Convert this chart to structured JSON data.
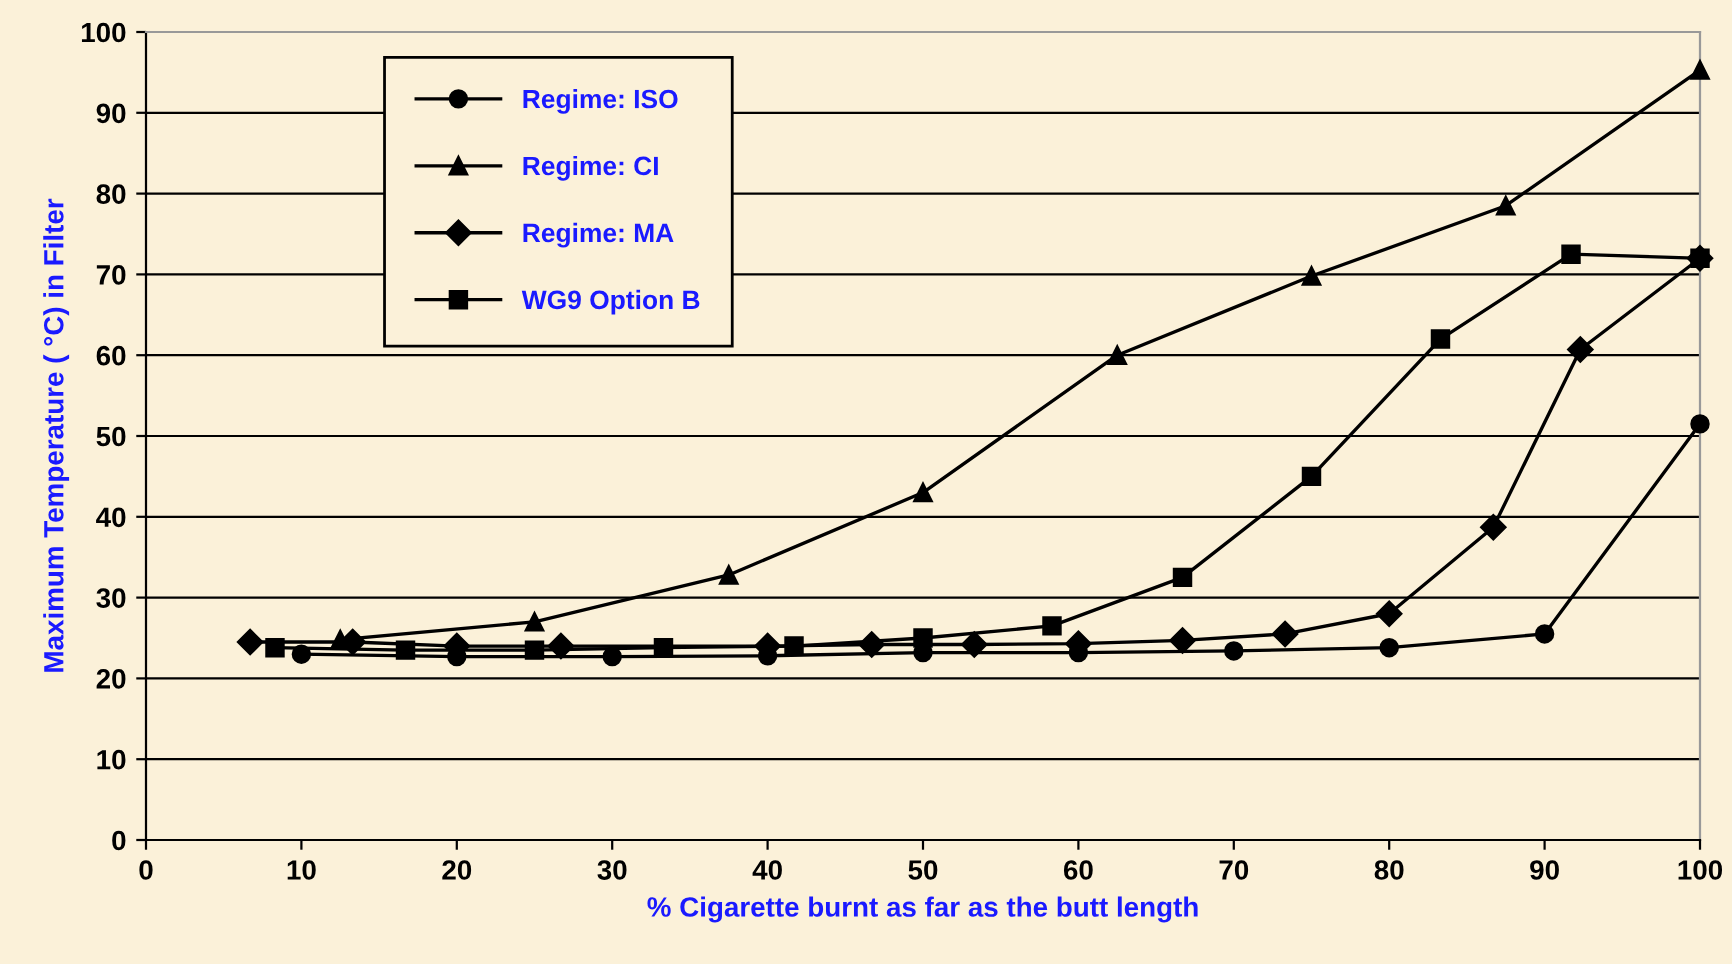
{
  "chart_data": {
    "type": "line",
    "xlabel": "% Cigarette burnt as far as the butt length",
    "ylabel": "Maximum Temperature ( °C) in Filter",
    "xlim": [
      0,
      100
    ],
    "xticks": [
      0,
      10,
      20,
      30,
      40,
      50,
      60,
      70,
      80,
      90,
      100
    ],
    "ylim": [
      0,
      100
    ],
    "yticks": [
      0,
      10,
      20,
      30,
      40,
      50,
      60,
      70,
      80,
      90,
      100
    ],
    "grid": "y",
    "legend": "top left",
    "line_style": "solid",
    "series": [
      {
        "name": "Regime: ISO",
        "color": "#000000",
        "marker": "circle",
        "x": [
          10,
          20,
          30,
          40,
          50,
          60,
          70,
          80,
          90,
          100
        ],
        "values": [
          23,
          22.7,
          22.7,
          22.8,
          23.2,
          23.2,
          23.4,
          23.8,
          25.5,
          51.5
        ]
      },
      {
        "name": "Regime: CI",
        "color": "#000000",
        "marker": "triangle",
        "x": [
          12.5,
          25,
          37.5,
          50,
          62.5,
          75,
          87.5,
          100
        ],
        "values": [
          24.8,
          27,
          32.8,
          43,
          60,
          69.8,
          78.5,
          95.3
        ]
      },
      {
        "name": "Regime: MA",
        "color": "#000000",
        "marker": "diamond",
        "x": [
          6.7,
          13.3,
          20,
          26.7,
          40,
          46.7,
          53.3,
          60,
          66.7,
          73.3,
          80,
          86.7,
          92.3,
          100
        ],
        "values": [
          24.5,
          24.5,
          24,
          24,
          24,
          24.2,
          24.2,
          24.3,
          24.7,
          25.5,
          28,
          38.7,
          60.7,
          72
        ]
      },
      {
        "name": "WG9 Option B",
        "color": "#000000",
        "marker": "square",
        "x": [
          8.3,
          16.7,
          25,
          33.3,
          41.7,
          50,
          58.3,
          66.7,
          75,
          83.3,
          91.7,
          100
        ],
        "values": [
          23.8,
          23.5,
          23.5,
          23.8,
          24,
          25,
          26.5,
          32.5,
          45,
          62,
          72.5,
          72
        ]
      }
    ]
  }
}
